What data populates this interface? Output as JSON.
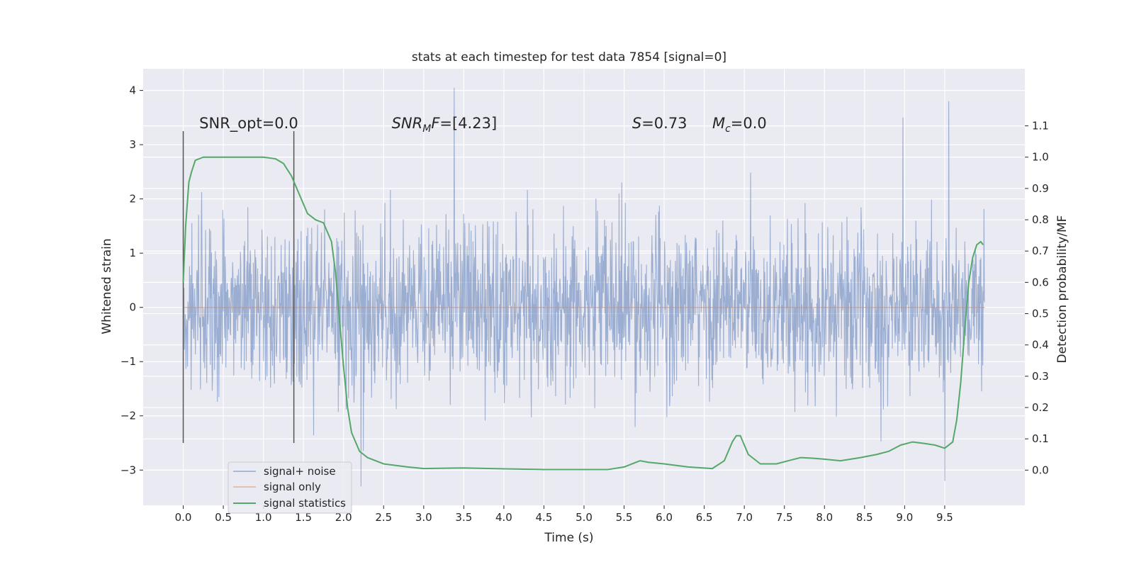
{
  "chart_data": {
    "type": "line",
    "title": "stats at each timestep for test data 7854 [signal=0]",
    "xlabel": "Time (s)",
    "ylabel": "Whitened strain",
    "y2label": "Detection probability/MF",
    "xlim": [
      -0.5,
      10.5
    ],
    "ylim": [
      -3.65,
      4.4
    ],
    "y2lim": [
      -0.1125,
      1.2825
    ],
    "grid": true,
    "legend_position": "bottom-left",
    "xticks": [
      0.0,
      0.5,
      1.0,
      1.5,
      2.0,
      2.5,
      3.0,
      3.5,
      4.0,
      4.5,
      5.0,
      5.5,
      6.0,
      6.5,
      7.0,
      7.5,
      8.0,
      8.5,
      9.0,
      9.5
    ],
    "xtick_labels": [
      "0.0",
      "0.5",
      "1.0",
      "1.5",
      "2.0",
      "2.5",
      "3.0",
      "3.5",
      "4.0",
      "4.5",
      "5.0",
      "5.5",
      "6.0",
      "6.5",
      "7.0",
      "7.5",
      "8.0",
      "8.5",
      "9.0",
      "9.5"
    ],
    "yticks": [
      -3,
      -2,
      -1,
      0,
      1,
      2,
      3,
      4
    ],
    "ytick_labels": [
      "−3",
      "−2",
      "−1",
      "0",
      "1",
      "2",
      "3",
      "4"
    ],
    "y2ticks": [
      0.0,
      0.1,
      0.2,
      0.3,
      0.4,
      0.5,
      0.6,
      0.7,
      0.8,
      0.9,
      1.0,
      1.1
    ],
    "y2tick_labels": [
      "0.0",
      "0.1",
      "0.2",
      "0.3",
      "0.4",
      "0.5",
      "0.6",
      "0.7",
      "0.8",
      "0.9",
      "1.0",
      "1.1"
    ],
    "annotations": [
      {
        "text": "SNR_opt=0.0",
        "x": 0.2,
        "y": 3.3
      },
      {
        "text": "SNR_M F=[4.23]",
        "x": 2.6,
        "y": 3.3
      },
      {
        "text": "S=0.73",
        "x": 5.6,
        "y": 3.3
      },
      {
        "text": "M_c=0.0",
        "x": 6.6,
        "y": 3.3
      }
    ],
    "vertical_lines": [
      {
        "x": 0.0,
        "y_range": [
          -2.5,
          3.25
        ]
      },
      {
        "x": 1.38,
        "y_range": [
          -2.5,
          3.25
        ]
      }
    ],
    "series": [
      {
        "name": "signal+ noise",
        "color": "#4c72b0",
        "description": "whitened noise, ~0.7 std, range about -3.3 to 4.05, x from 0 to 10",
        "x_range": [
          0.0,
          10.0
        ],
        "peaks": [
          {
            "x": 3.38,
            "y": 4.05
          },
          {
            "x": 9.55,
            "y": 3.8
          },
          {
            "x": 8.98,
            "y": 3.5
          },
          {
            "x": 9.5,
            "y": -3.2
          },
          {
            "x": 2.22,
            "y": -3.3
          }
        ]
      },
      {
        "name": "signal only",
        "color": "#dd8452",
        "x": [
          0.0,
          10.0
        ],
        "y": [
          0.0,
          0.0
        ]
      },
      {
        "name": "signal statistics",
        "color": "#55a868",
        "axis": "right",
        "x": [
          0.0,
          0.03,
          0.07,
          0.1,
          0.15,
          0.25,
          0.4,
          0.6,
          0.8,
          1.0,
          1.15,
          1.25,
          1.35,
          1.45,
          1.55,
          1.65,
          1.75,
          1.85,
          1.9,
          1.95,
          2.0,
          2.05,
          2.1,
          2.2,
          2.3,
          2.5,
          2.8,
          3.0,
          3.5,
          4.0,
          4.5,
          5.0,
          5.3,
          5.5,
          5.6,
          5.7,
          5.8,
          6.0,
          6.3,
          6.6,
          6.75,
          6.85,
          6.9,
          6.95,
          7.05,
          7.2,
          7.4,
          7.55,
          7.7,
          7.85,
          8.0,
          8.2,
          8.45,
          8.65,
          8.8,
          8.95,
          9.1,
          9.25,
          9.38,
          9.5,
          9.6,
          9.65,
          9.7,
          9.75,
          9.8,
          9.85,
          9.9,
          9.95,
          9.98
        ],
        "y": [
          0.6,
          0.78,
          0.92,
          0.95,
          0.99,
          1.0,
          1.0,
          1.0,
          1.0,
          1.0,
          0.995,
          0.98,
          0.94,
          0.88,
          0.82,
          0.8,
          0.79,
          0.73,
          0.63,
          0.48,
          0.33,
          0.2,
          0.12,
          0.06,
          0.04,
          0.02,
          0.01,
          0.005,
          0.007,
          0.004,
          0.002,
          0.002,
          0.002,
          0.01,
          0.02,
          0.03,
          0.025,
          0.02,
          0.01,
          0.005,
          0.03,
          0.09,
          0.11,
          0.11,
          0.05,
          0.02,
          0.02,
          0.03,
          0.04,
          0.038,
          0.035,
          0.03,
          0.04,
          0.05,
          0.06,
          0.08,
          0.09,
          0.085,
          0.08,
          0.07,
          0.09,
          0.16,
          0.28,
          0.45,
          0.6,
          0.68,
          0.72,
          0.73,
          0.72
        ]
      }
    ]
  }
}
